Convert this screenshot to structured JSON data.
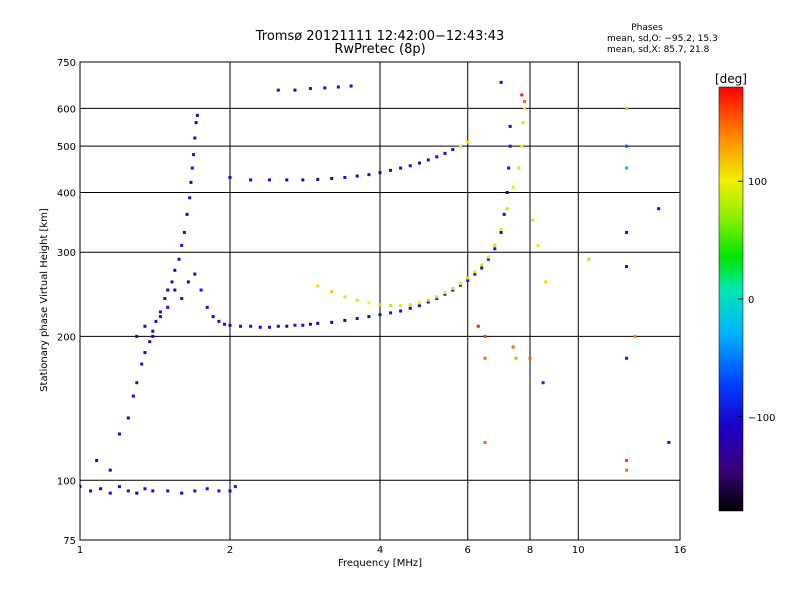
{
  "header": {
    "title_line1": "Tromsø 20121111 12:42:00−12:43:43",
    "title_line2": "RwPretec (8p)"
  },
  "stats": {
    "heading": "Phases",
    "line_o": "mean, sd,O: −95.2, 15.3",
    "line_x": "mean, sd,X:  85.7, 21.8"
  },
  "chart_data": {
    "type": "scatter",
    "xlabel": "Frequency [MHz]",
    "ylabel": "Stationary phase Virtual Height [km]",
    "x_scale": "log",
    "y_scale": "log",
    "xlim": [
      1,
      16
    ],
    "ylim": [
      75,
      750
    ],
    "x_ticks": [
      1,
      2,
      4,
      6,
      8,
      10,
      16
    ],
    "x_tick_labels": [
      "1",
      "2",
      "4",
      "6",
      "8",
      "10",
      "16"
    ],
    "y_ticks": [
      75,
      100,
      200,
      300,
      400,
      500,
      600,
      750
    ],
    "y_tick_labels": [
      "75",
      "100",
      "200",
      "300",
      "400",
      "500",
      "600",
      "750"
    ],
    "grid": true,
    "colorbar": {
      "label": "[deg]",
      "range": [
        -180,
        180
      ],
      "ticks": [
        -100,
        0,
        100
      ],
      "tick_labels": [
        "−100",
        "0",
        "100"
      ]
    },
    "series": [
      {
        "comment_color": "phase in degrees per point",
        "points": [
          [
            1.0,
            97,
            -100
          ],
          [
            1.05,
            95,
            -110
          ],
          [
            1.1,
            96,
            -105
          ],
          [
            1.15,
            94,
            -100
          ],
          [
            1.2,
            97,
            -95
          ],
          [
            1.25,
            95,
            -100
          ],
          [
            1.3,
            94,
            -110
          ],
          [
            1.35,
            96,
            -100
          ],
          [
            1.4,
            95,
            -105
          ],
          [
            1.5,
            95,
            -100
          ],
          [
            1.6,
            94,
            -110
          ],
          [
            1.7,
            95,
            -100
          ],
          [
            1.8,
            96,
            -100
          ],
          [
            1.9,
            95,
            -105
          ],
          [
            2.0,
            95,
            -100
          ],
          [
            2.05,
            97,
            -95
          ],
          [
            1.08,
            110,
            -100
          ],
          [
            1.15,
            105,
            -105
          ],
          [
            1.2,
            125,
            -100
          ],
          [
            1.25,
            135,
            -110
          ],
          [
            1.28,
            150,
            -100
          ],
          [
            1.3,
            160,
            -95
          ],
          [
            1.33,
            175,
            -100
          ],
          [
            1.35,
            185,
            -105
          ],
          [
            1.38,
            195,
            -100
          ],
          [
            1.4,
            205,
            -110
          ],
          [
            1.42,
            215,
            -100
          ],
          [
            1.45,
            225,
            -95
          ],
          [
            1.48,
            240,
            -100
          ],
          [
            1.5,
            250,
            -105
          ],
          [
            1.53,
            260,
            -100
          ],
          [
            1.55,
            275,
            -110
          ],
          [
            1.58,
            290,
            -100
          ],
          [
            1.6,
            310,
            -95
          ],
          [
            1.62,
            330,
            -100
          ],
          [
            1.64,
            360,
            -105
          ],
          [
            1.66,
            390,
            -100
          ],
          [
            1.67,
            420,
            -110
          ],
          [
            1.68,
            450,
            -100
          ],
          [
            1.69,
            480,
            -95
          ],
          [
            1.7,
            520,
            -100
          ],
          [
            1.71,
            560,
            -105
          ],
          [
            1.72,
            580,
            -100
          ],
          [
            1.3,
            200,
            -100
          ],
          [
            1.35,
            210,
            -105
          ],
          [
            1.4,
            200,
            -100
          ],
          [
            1.45,
            220,
            -95
          ],
          [
            1.5,
            230,
            -100
          ],
          [
            1.55,
            250,
            -110
          ],
          [
            1.6,
            240,
            -100
          ],
          [
            1.65,
            260,
            -105
          ],
          [
            1.7,
            270,
            -100
          ],
          [
            1.75,
            250,
            -95
          ],
          [
            1.8,
            230,
            -100
          ],
          [
            1.85,
            220,
            -105
          ],
          [
            1.9,
            215,
            -100
          ],
          [
            1.95,
            212,
            -100
          ],
          [
            2.0,
            211,
            -105
          ],
          [
            2.1,
            210,
            -100
          ],
          [
            2.2,
            210,
            -100
          ],
          [
            2.3,
            209,
            -110
          ],
          [
            2.4,
            209,
            -100
          ],
          [
            2.5,
            210,
            -105
          ],
          [
            2.6,
            210,
            -100
          ],
          [
            2.7,
            211,
            -95
          ],
          [
            2.8,
            211,
            -100
          ],
          [
            2.9,
            212,
            -105
          ],
          [
            3.0,
            213,
            -110
          ],
          [
            3.2,
            214,
            -120
          ],
          [
            3.4,
            216,
            -130
          ],
          [
            3.6,
            218,
            -100
          ],
          [
            3.8,
            220,
            -105
          ],
          [
            4.0,
            222,
            -100
          ],
          [
            4.2,
            224,
            -95
          ],
          [
            4.4,
            226,
            -100
          ],
          [
            4.6,
            229,
            -105
          ],
          [
            4.8,
            232,
            -100
          ],
          [
            5.0,
            236,
            -110
          ],
          [
            5.2,
            240,
            -100
          ],
          [
            5.4,
            245,
            -95
          ],
          [
            5.6,
            250,
            -100
          ],
          [
            5.8,
            256,
            -105
          ],
          [
            6.0,
            262,
            -100
          ],
          [
            6.2,
            270,
            -110
          ],
          [
            6.4,
            278,
            -100
          ],
          [
            6.6,
            290,
            -95
          ],
          [
            6.8,
            305,
            -100
          ],
          [
            7.0,
            330,
            -105
          ],
          [
            7.1,
            360,
            -100
          ],
          [
            7.2,
            400,
            -110
          ],
          [
            7.25,
            450,
            -100
          ],
          [
            7.3,
            500,
            -95
          ],
          [
            7.3,
            550,
            -100
          ],
          [
            3.0,
            255,
            110
          ],
          [
            3.2,
            248,
            115
          ],
          [
            3.4,
            242,
            105
          ],
          [
            3.6,
            238,
            110
          ],
          [
            3.8,
            235,
            100
          ],
          [
            4.0,
            233,
            115
          ],
          [
            4.2,
            232,
            110
          ],
          [
            4.4,
            232,
            105
          ],
          [
            4.6,
            233,
            110
          ],
          [
            4.8,
            235,
            100
          ],
          [
            5.0,
            238,
            115
          ],
          [
            5.2,
            242,
            110
          ],
          [
            5.4,
            247,
            105
          ],
          [
            5.6,
            252,
            110
          ],
          [
            5.8,
            258,
            100
          ],
          [
            6.0,
            265,
            110
          ],
          [
            6.2,
            273,
            105
          ],
          [
            6.4,
            282,
            110
          ],
          [
            6.6,
            293,
            100
          ],
          [
            6.8,
            310,
            110
          ],
          [
            7.0,
            335,
            105
          ],
          [
            7.2,
            370,
            110
          ],
          [
            7.4,
            410,
            100
          ],
          [
            7.6,
            450,
            110
          ],
          [
            7.7,
            500,
            105
          ],
          [
            7.75,
            560,
            110
          ],
          [
            7.8,
            600,
            100
          ],
          [
            2.0,
            430,
            -100
          ],
          [
            2.2,
            425,
            -105
          ],
          [
            2.4,
            425,
            -100
          ],
          [
            2.6,
            425,
            -110
          ],
          [
            2.8,
            425,
            -100
          ],
          [
            3.0,
            426,
            -130
          ],
          [
            3.2,
            428,
            -140
          ],
          [
            3.4,
            430,
            -100
          ],
          [
            3.6,
            433,
            -105
          ],
          [
            3.8,
            436,
            -100
          ],
          [
            4.0,
            440,
            -110
          ],
          [
            4.2,
            445,
            -100
          ],
          [
            4.4,
            450,
            -105
          ],
          [
            4.6,
            455,
            -100
          ],
          [
            4.8,
            461,
            -110
          ],
          [
            5.0,
            468,
            -100
          ],
          [
            5.2,
            475,
            -105
          ],
          [
            5.4,
            483,
            -100
          ],
          [
            5.6,
            492,
            -110
          ],
          [
            5.8,
            500,
            100
          ],
          [
            6.0,
            510,
            110
          ],
          [
            2.5,
            655,
            -100
          ],
          [
            2.7,
            655,
            -105
          ],
          [
            2.9,
            660,
            -100
          ],
          [
            3.1,
            662,
            -110
          ],
          [
            3.3,
            665,
            -100
          ],
          [
            3.5,
            668,
            -105
          ],
          [
            7.7,
            640,
            170
          ],
          [
            7.8,
            620,
            150
          ],
          [
            7.0,
            680,
            -100
          ],
          [
            6.5,
            180,
            150
          ],
          [
            7.5,
            180,
            130
          ],
          [
            8.0,
            180,
            150
          ],
          [
            8.5,
            160,
            -80
          ],
          [
            10.5,
            290,
            120
          ],
          [
            12.5,
            600,
            120
          ],
          [
            12.5,
            500,
            -60
          ],
          [
            12.5,
            450,
            -30
          ],
          [
            12.5,
            330,
            -100
          ],
          [
            12.5,
            280,
            -100
          ],
          [
            12.5,
            180,
            -100
          ],
          [
            12.5,
            105,
            150
          ],
          [
            12.5,
            110,
            160
          ],
          [
            13.0,
            200,
            140
          ],
          [
            14.5,
            370,
            -100
          ],
          [
            15.2,
            120,
            -100
          ],
          [
            6.5,
            200,
            160
          ],
          [
            6.5,
            120,
            150
          ],
          [
            6.3,
            210,
            170
          ],
          [
            8.1,
            350,
            110
          ],
          [
            8.3,
            310,
            100
          ],
          [
            8.6,
            260,
            110
          ],
          [
            7.4,
            190,
            150
          ]
        ]
      }
    ]
  }
}
